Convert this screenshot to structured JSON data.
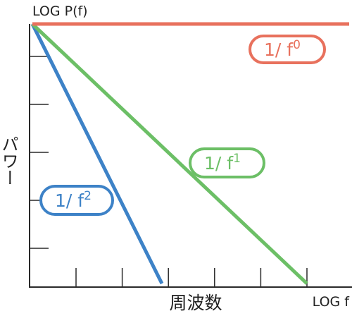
{
  "chart_data": {
    "type": "line",
    "title": "",
    "ylabel_top": "LOG P(f)",
    "ylabel_side": "パワー",
    "xlabel": "周波数",
    "xlabel_right": "LOG f",
    "log_scale": true,
    "grid": false,
    "x_ticks": 6,
    "y_ticks": 5,
    "series": [
      {
        "name": "1/ f0",
        "label_base": "1/ f",
        "exponent": "0",
        "slope": 0,
        "color": "#e8715d"
      },
      {
        "name": "1/ f1",
        "label_base": "1/ f",
        "exponent": "1",
        "slope": -1,
        "color": "#6cbf66"
      },
      {
        "name": "1/ f2",
        "label_base": "1/ f",
        "exponent": "2",
        "slope": -2,
        "color": "#3d82c7"
      }
    ]
  }
}
